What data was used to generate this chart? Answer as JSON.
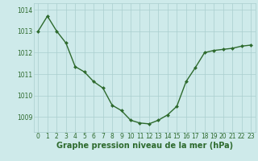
{
  "x": [
    0,
    1,
    2,
    3,
    4,
    5,
    6,
    7,
    8,
    9,
    10,
    11,
    12,
    13,
    14,
    15,
    16,
    17,
    18,
    19,
    20,
    21,
    22,
    23
  ],
  "y": [
    1013.0,
    1013.7,
    1013.0,
    1012.45,
    1011.35,
    1011.1,
    1010.65,
    1010.35,
    1009.55,
    1009.3,
    1008.85,
    1008.72,
    1008.68,
    1008.85,
    1009.1,
    1009.5,
    1010.65,
    1011.3,
    1012.0,
    1012.1,
    1012.15,
    1012.2,
    1012.3,
    1012.35
  ],
  "line_color": "#2d6a2d",
  "marker": "D",
  "marker_size": 2.0,
  "background_color": "#ceeaea",
  "grid_color": "#aacece",
  "xlabel": "Graphe pression niveau de la mer (hPa)",
  "xlabel_fontsize": 7,
  "ylabel_ticks": [
    1009,
    1010,
    1011,
    1012,
    1013,
    1014
  ],
  "ylim": [
    1008.3,
    1014.3
  ],
  "xlim": [
    -0.5,
    23.5
  ],
  "xtick_labels": [
    "0",
    "1",
    "2",
    "3",
    "4",
    "5",
    "6",
    "7",
    "8",
    "9",
    "10",
    "11",
    "12",
    "13",
    "14",
    "15",
    "16",
    "17",
    "18",
    "19",
    "20",
    "21",
    "22",
    "23"
  ],
  "tick_fontsize": 5.5,
  "line_width": 1.0
}
